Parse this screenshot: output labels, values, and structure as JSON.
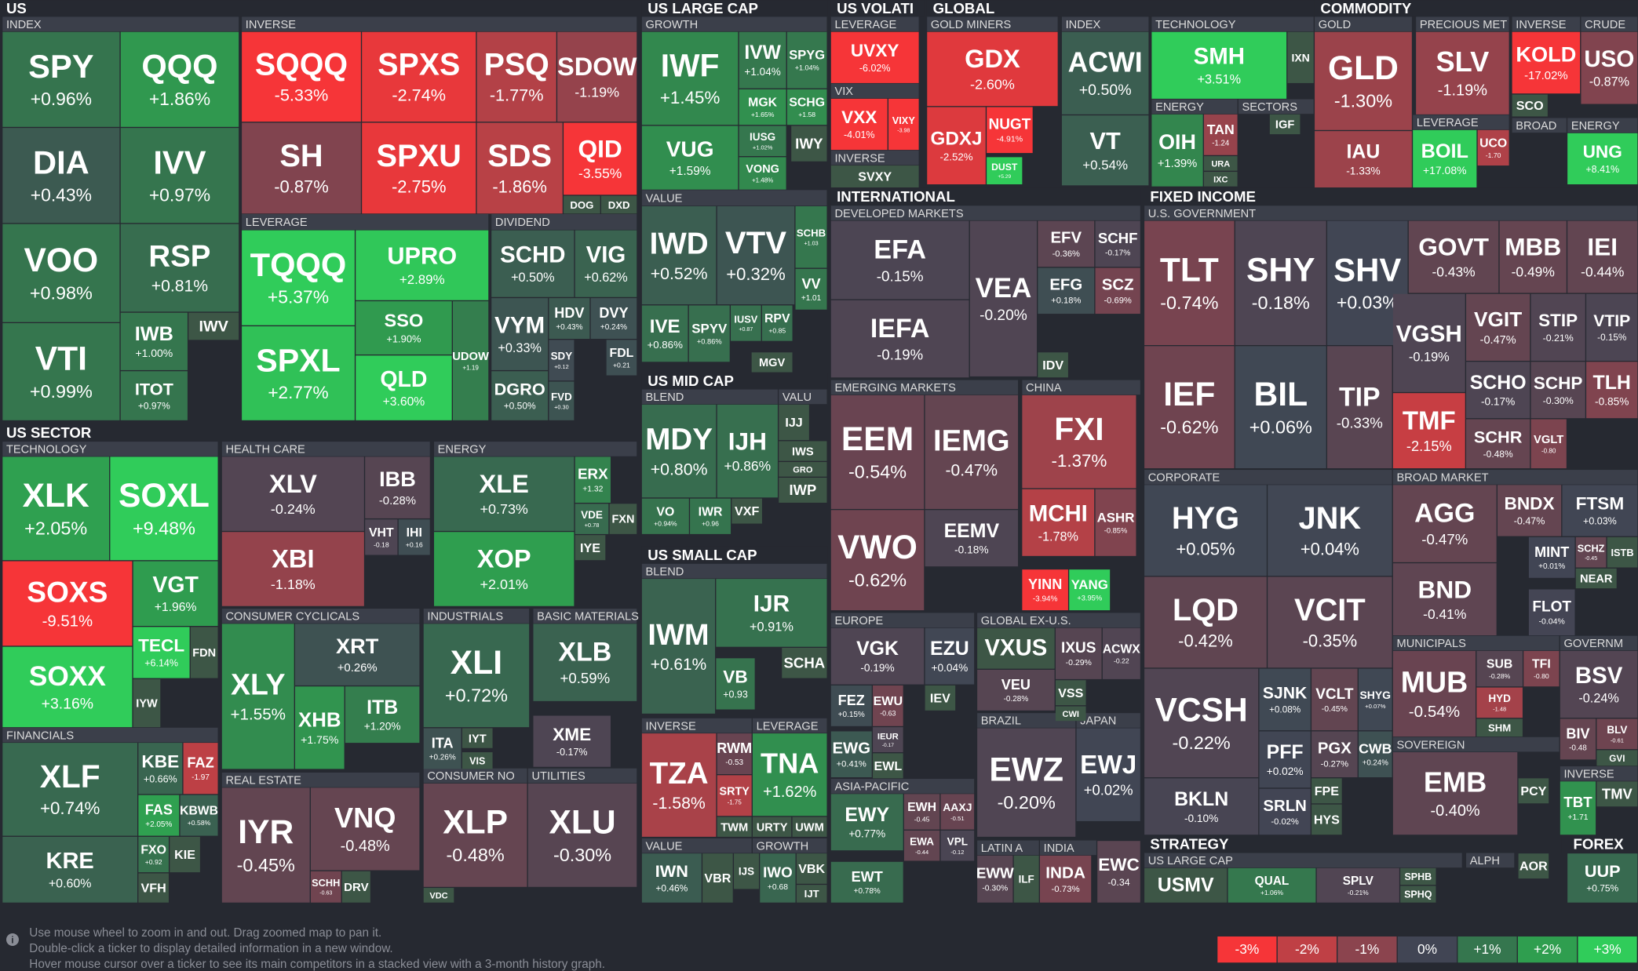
{
  "headers": [
    "US",
    "US SECTOR",
    "US LARGE CAP",
    "US MID CAP",
    "US SMALL CAP",
    "US VOLATI",
    "GLOBAL",
    "COMMODITY",
    "INTERNATIONAL",
    "FIXED INCOME",
    "STRATEGY",
    "FOREX"
  ],
  "groups": [
    "INDEX",
    "INVERSE",
    "LEVERAGE",
    "DIVIDEND",
    "TECHNOLOGY",
    "FINANCIALS",
    "HEALTH CARE",
    "ENERGY",
    "CONSUMER CYCLICALS",
    "INDUSTRIALS",
    "BASIC MATERIALS",
    "REAL ESTATE",
    "CONSUMER NO",
    "UTILITIES",
    "GROWTH",
    "VALUE",
    "BLEND",
    "VALU",
    "BLEND",
    "INVERSE",
    "LEVERAGE",
    "VALUE",
    "GROWTH",
    "LEVERAGE",
    "VIX",
    "INVERSE",
    "GOLD MINERS",
    "INDEX",
    "TECHNOLOGY",
    "ENERGY",
    "SECTORS",
    "GOLD",
    "PRECIOUS MET",
    "LEVERAGE",
    "INVERSE",
    "BROAD",
    "CRUDE",
    "ENERGY",
    "DEVELOPED MARKETS",
    "EMERGING MARKETS",
    "CHINA",
    "EUROPE",
    "GLOBAL EX-U.S.",
    "ASIA-PACIFIC",
    "BRAZIL",
    "JAPAN",
    "LATIN A",
    "INDIA",
    "U.S. GOVERNMENT",
    "CORPORATE",
    "BROAD MARKET",
    "MUNICIPALS",
    "GOVERNM",
    "SOVEREIGN",
    "INVERSE",
    "US LARGE CAP",
    "ALPH"
  ],
  "tiles": [
    {
      "t": "SPY",
      "v": 0.96,
      "l": "+0.96%"
    },
    {
      "t": "QQQ",
      "v": 1.86,
      "l": "+1.86%"
    },
    {
      "t": "DIA",
      "v": 0.43,
      "l": "+0.43%"
    },
    {
      "t": "IVV",
      "v": 0.97,
      "l": "+0.97%"
    },
    {
      "t": "VOO",
      "v": 0.98,
      "l": "+0.98%"
    },
    {
      "t": "RSP",
      "v": 0.81,
      "l": "+0.81%"
    },
    {
      "t": "VTI",
      "v": 0.99,
      "l": "+0.99%"
    },
    {
      "t": "IWB",
      "v": 1.0,
      "l": "+1.00%"
    },
    {
      "t": "ITOT",
      "v": 0.97,
      "l": "+0.97%"
    },
    {
      "t": "IWV"
    },
    {
      "t": "SQQQ",
      "v": -5.33,
      "l": "-5.33%"
    },
    {
      "t": "SPXS",
      "v": -2.74,
      "l": "-2.74%"
    },
    {
      "t": "PSQ",
      "v": -1.77,
      "l": "-1.77%"
    },
    {
      "t": "SDOW",
      "v": -1.19,
      "l": "-1.19%"
    },
    {
      "t": "SH",
      "v": -0.87,
      "l": "-0.87%"
    },
    {
      "t": "SPXU",
      "v": -2.75,
      "l": "-2.75%"
    },
    {
      "t": "SDS",
      "v": -1.86,
      "l": "-1.86%"
    },
    {
      "t": "QID",
      "v": -3.55,
      "l": "-3.55%"
    },
    {
      "t": "DOG"
    },
    {
      "t": "DXD"
    },
    {
      "t": "TQQQ",
      "v": 5.37,
      "l": "+5.37%"
    },
    {
      "t": "UPRO",
      "v": 2.89,
      "l": "+2.89%"
    },
    {
      "t": "SPXL",
      "v": 2.77,
      "l": "+2.77%"
    },
    {
      "t": "SSO",
      "v": 1.9,
      "l": "+1.90%"
    },
    {
      "t": "QLD",
      "v": 3.6,
      "l": "+3.60%"
    },
    {
      "t": "UDOW",
      "v": 1.19,
      "l": "+1.19"
    },
    {
      "t": "SCHD",
      "v": 0.5,
      "l": "+0.50%"
    },
    {
      "t": "VIG",
      "v": 0.62,
      "l": "+0.62%"
    },
    {
      "t": "VYM",
      "v": 0.33,
      "l": "+0.33%"
    },
    {
      "t": "HDV",
      "v": 0.43,
      "l": "+0.43%"
    },
    {
      "t": "DVY",
      "v": 0.24,
      "l": "+0.24%"
    },
    {
      "t": "SDY",
      "v": 0.12,
      "l": "+0.12"
    },
    {
      "t": "FDL",
      "v": 0.21,
      "l": "+0.21"
    },
    {
      "t": "DGRO",
      "v": 0.5,
      "l": "+0.50%"
    },
    {
      "t": "FVD",
      "v": 0.3,
      "l": "+0.30"
    },
    {
      "t": "XLK",
      "v": 2.05,
      "l": "+2.05%"
    },
    {
      "t": "SOXL",
      "v": 9.48,
      "l": "+9.48%"
    },
    {
      "t": "SOXS",
      "v": -9.51,
      "l": "-9.51%"
    },
    {
      "t": "VGT",
      "v": 1.96,
      "l": "+1.96%"
    },
    {
      "t": "SOXX",
      "v": 3.16,
      "l": "+3.16%"
    },
    {
      "t": "TECL",
      "v": 6.14,
      "l": "+6.14%"
    },
    {
      "t": "FDN"
    },
    {
      "t": "IYW"
    },
    {
      "t": "XLF",
      "v": 0.74,
      "l": "+0.74%"
    },
    {
      "t": "KBE",
      "v": 0.66,
      "l": "+0.66%"
    },
    {
      "t": "FAZ",
      "v": -1.97,
      "l": "-1.97"
    },
    {
      "t": "FAS",
      "v": 2.05,
      "l": "+2.05%"
    },
    {
      "t": "KBWB",
      "v": 0.58,
      "l": "+0.58%"
    },
    {
      "t": "KRE",
      "v": 0.6,
      "l": "+0.60%"
    },
    {
      "t": "FXO",
      "v": 0.92,
      "l": "+0.92"
    },
    {
      "t": "KIE"
    },
    {
      "t": "VFH"
    },
    {
      "t": "XLV",
      "v": -0.24,
      "l": "-0.24%"
    },
    {
      "t": "IBB",
      "v": -0.28,
      "l": "-0.28%"
    },
    {
      "t": "XBI",
      "v": -1.18,
      "l": "-1.18%"
    },
    {
      "t": "VHT",
      "v": -0.18,
      "l": "-0.18"
    },
    {
      "t": "IHI",
      "v": 0.16,
      "l": "+0.16"
    },
    {
      "t": "XLE",
      "v": 0.73,
      "l": "+0.73%"
    },
    {
      "t": "ERX",
      "v": 1.32,
      "l": "+1.32"
    },
    {
      "t": "VDE",
      "v": 0.78,
      "l": "+0.78"
    },
    {
      "t": "FXN"
    },
    {
      "t": "XOP",
      "v": 2.01,
      "l": "+2.01%"
    },
    {
      "t": "IYE"
    },
    {
      "t": "XRT",
      "v": 0.26,
      "l": "+0.26%"
    },
    {
      "t": "XLY",
      "v": 1.55,
      "l": "+1.55%"
    },
    {
      "t": "XHB",
      "v": 1.75,
      "l": "+1.75%"
    },
    {
      "t": "ITB",
      "v": 1.2,
      "l": "+1.20%"
    },
    {
      "t": "XLI",
      "v": 0.72,
      "l": "+0.72%"
    },
    {
      "t": "ITA",
      "v": 0.26,
      "l": "+0.26%"
    },
    {
      "t": "IYT"
    },
    {
      "t": "VIS"
    },
    {
      "t": "XLB",
      "v": 0.59,
      "l": "+0.59%"
    },
    {
      "t": "XME",
      "v": -0.17,
      "l": "-0.17%"
    },
    {
      "t": "IYR",
      "v": -0.45,
      "l": "-0.45%"
    },
    {
      "t": "VNQ",
      "v": -0.48,
      "l": "-0.48%"
    },
    {
      "t": "SCHH",
      "v": -0.63,
      "l": "-0.63"
    },
    {
      "t": "DRV"
    },
    {
      "t": "XLP",
      "v": -0.48,
      "l": "-0.48%"
    },
    {
      "t": "VDC"
    },
    {
      "t": "XLU",
      "v": -0.3,
      "l": "-0.30%"
    },
    {
      "t": "IWF",
      "v": 1.45,
      "l": "+1.45%"
    },
    {
      "t": "IVW",
      "v": 1.04,
      "l": "+1.04%"
    },
    {
      "t": "SPYG",
      "v": 1.04,
      "l": "+1.04%"
    },
    {
      "t": "MGK",
      "v": 1.65,
      "l": "+1.65%"
    },
    {
      "t": "SCHG",
      "v": 1.58,
      "l": "+1.58"
    },
    {
      "t": "VUG",
      "v": 1.59,
      "l": "+1.59%"
    },
    {
      "t": "IUSG",
      "v": 1.02,
      "l": "+1.02%"
    },
    {
      "t": "IWY"
    },
    {
      "t": "VONG",
      "v": 1.48,
      "l": "+1.48%"
    },
    {
      "t": "IWD",
      "v": 0.52,
      "l": "+0.52%"
    },
    {
      "t": "VTV",
      "v": 0.32,
      "l": "+0.32%"
    },
    {
      "t": "SCHB",
      "v": 1.03,
      "l": "+1.03"
    },
    {
      "t": "VV",
      "v": 1.01,
      "l": "+1.01"
    },
    {
      "t": "IVE",
      "v": 0.86,
      "l": "+0.86%"
    },
    {
      "t": "SPYV",
      "v": 0.86,
      "l": "+0.86%"
    },
    {
      "t": "IUSV",
      "v": 0.87,
      "l": "+0.87"
    },
    {
      "t": "RPV",
      "v": 0.85,
      "l": "+0.85"
    },
    {
      "t": "MGV"
    },
    {
      "t": "MDY",
      "v": 0.8,
      "l": "+0.80%"
    },
    {
      "t": "IJH",
      "v": 0.86,
      "l": "+0.86%"
    },
    {
      "t": "VO",
      "v": 0.94,
      "l": "+0.94%"
    },
    {
      "t": "IWR",
      "v": 0.96,
      "l": "+0.96"
    },
    {
      "t": "VXF"
    },
    {
      "t": "IJJ"
    },
    {
      "t": "IWS"
    },
    {
      "t": "GRO"
    },
    {
      "t": "IWP"
    },
    {
      "t": "IJR",
      "v": 0.91,
      "l": "+0.91%"
    },
    {
      "t": "IWM",
      "v": 0.61,
      "l": "+0.61%"
    },
    {
      "t": "SCHA"
    },
    {
      "t": "VB",
      "v": 0.93,
      "l": "+0.93"
    },
    {
      "t": "TZA",
      "v": -1.58,
      "l": "-1.58%"
    },
    {
      "t": "RWM",
      "v": -0.53,
      "l": "-0.53"
    },
    {
      "t": "SRTY",
      "v": -1.75,
      "l": "-1.75"
    },
    {
      "t": "TWM"
    },
    {
      "t": "TNA",
      "v": 1.62,
      "l": "+1.62%"
    },
    {
      "t": "URTY"
    },
    {
      "t": "UWM"
    },
    {
      "t": "IWN",
      "v": 0.46,
      "l": "+0.46%"
    },
    {
      "t": "VBR"
    },
    {
      "t": "IJS"
    },
    {
      "t": "IWO",
      "v": 0.68,
      "l": "+0.68"
    },
    {
      "t": "VBK"
    },
    {
      "t": "IJT"
    },
    {
      "t": "UVXY",
      "v": -6.02,
      "l": "-6.02%"
    },
    {
      "t": "VXX",
      "v": -4.01,
      "l": "-4.01%"
    },
    {
      "t": "VIXY",
      "v": -3.98,
      "l": "-3.98"
    },
    {
      "t": "SVXY"
    },
    {
      "t": "GDX",
      "v": -2.6,
      "l": "-2.60%"
    },
    {
      "t": "GDXJ",
      "v": -2.52,
      "l": "-2.52%"
    },
    {
      "t": "NUGT",
      "v": -4.91,
      "l": "-4.91%"
    },
    {
      "t": "DUST",
      "v": 5.29,
      "l": "+5.29"
    },
    {
      "t": "ACWI",
      "v": 0.5,
      "l": "+0.50%"
    },
    {
      "t": "VT",
      "v": 0.54,
      "l": "+0.54%"
    },
    {
      "t": "SMH",
      "v": 3.51,
      "l": "+3.51%"
    },
    {
      "t": "IXN"
    },
    {
      "t": "OIH",
      "v": 1.39,
      "l": "+1.39%"
    },
    {
      "t": "TAN",
      "v": -1.24,
      "l": "-1.24"
    },
    {
      "t": "URA"
    },
    {
      "t": "IXC"
    },
    {
      "t": "IGF"
    },
    {
      "t": "GLD",
      "v": -1.3,
      "l": "-1.30%"
    },
    {
      "t": "IAU",
      "v": -1.33,
      "l": "-1.33%"
    },
    {
      "t": "SLV",
      "v": -1.19,
      "l": "-1.19%"
    },
    {
      "t": "BOIL",
      "v": 17.08,
      "l": "+17.08%"
    },
    {
      "t": "UCO",
      "v": -1.7,
      "l": "-1.70"
    },
    {
      "t": "KOLD",
      "v": -17.02,
      "l": "-17.02%"
    },
    {
      "t": "SCO"
    },
    {
      "t": "USO",
      "v": -0.87,
      "l": "-0.87%"
    },
    {
      "t": "UNG",
      "v": 8.41,
      "l": "+8.41%"
    },
    {
      "t": "EFA",
      "v": -0.15,
      "l": "-0.15%"
    },
    {
      "t": "IEFA",
      "v": -0.19,
      "l": "-0.19%"
    },
    {
      "t": "VEA",
      "v": -0.2,
      "l": "-0.20%"
    },
    {
      "t": "EFV",
      "v": -0.36,
      "l": "-0.36%"
    },
    {
      "t": "SCHF",
      "v": -0.17,
      "l": "-0.17%"
    },
    {
      "t": "EFG",
      "v": 0.18,
      "l": "+0.18%"
    },
    {
      "t": "SCZ",
      "v": -0.69,
      "l": "-0.69%"
    },
    {
      "t": "IDV"
    },
    {
      "t": "EEM",
      "v": -0.54,
      "l": "-0.54%"
    },
    {
      "t": "IEMG",
      "v": -0.47,
      "l": "-0.47%"
    },
    {
      "t": "EEMV",
      "v": -0.18,
      "l": "-0.18%"
    },
    {
      "t": "VWO",
      "v": -0.62,
      "l": "-0.62%"
    },
    {
      "t": "FXI",
      "v": -1.37,
      "l": "-1.37%"
    },
    {
      "t": "MCHI",
      "v": -1.78,
      "l": "-1.78%"
    },
    {
      "t": "ASHR",
      "v": -0.85,
      "l": "-0.85%"
    },
    {
      "t": "YINN",
      "v": -3.94,
      "l": "-3.94%"
    },
    {
      "t": "YANG",
      "v": 3.95,
      "l": "+3.95%"
    },
    {
      "t": "VGK",
      "v": -0.19,
      "l": "-0.19%"
    },
    {
      "t": "EZU",
      "v": 0.04,
      "l": "+0.04%"
    },
    {
      "t": "FEZ",
      "v": 0.15,
      "l": "+0.15%"
    },
    {
      "t": "EWU",
      "v": -0.63,
      "l": "-0.63"
    },
    {
      "t": "IEV"
    },
    {
      "t": "EWG",
      "v": 0.41,
      "l": "+0.41%"
    },
    {
      "t": "IEUR",
      "v": -0.17,
      "l": "-0.17"
    },
    {
      "t": "EWL"
    },
    {
      "t": "VXUS"
    },
    {
      "t": "IXUS",
      "v": -0.29,
      "l": "-0.29%"
    },
    {
      "t": "ACWX",
      "v": -0.22,
      "l": "-0.22"
    },
    {
      "t": "VEU",
      "v": -0.28,
      "l": "-0.28%"
    },
    {
      "t": "VSS"
    },
    {
      "t": "CWI"
    },
    {
      "t": "EWY",
      "v": 0.77,
      "l": "+0.77%"
    },
    {
      "t": "EWH",
      "v": -0.45,
      "l": "-0.45"
    },
    {
      "t": "AAXJ",
      "v": -0.51,
      "l": "-0.51"
    },
    {
      "t": "EWA",
      "v": -0.44,
      "l": "-0.44"
    },
    {
      "t": "VPL",
      "v": -0.12,
      "l": "-0.12"
    },
    {
      "t": "EWT",
      "v": 0.78,
      "l": "+0.78%"
    },
    {
      "t": "EWZ",
      "v": -0.2,
      "l": "-0.20%"
    },
    {
      "t": "EWJ",
      "v": 0.02,
      "l": "+0.02%"
    },
    {
      "t": "EWW",
      "v": -0.3,
      "l": "-0.30%"
    },
    {
      "t": "ILF"
    },
    {
      "t": "INDA",
      "v": -0.73,
      "l": "-0.73%"
    },
    {
      "t": "EWC",
      "v": -0.34,
      "l": "-0.34"
    },
    {
      "t": "TLT",
      "v": -0.74,
      "l": "-0.74%"
    },
    {
      "t": "SHY",
      "v": -0.18,
      "l": "-0.18%"
    },
    {
      "t": "SHV",
      "v": 0.03,
      "l": "+0.03%"
    },
    {
      "t": "GOVT",
      "v": -0.43,
      "l": "-0.43%"
    },
    {
      "t": "MBB",
      "v": -0.49,
      "l": "-0.49%"
    },
    {
      "t": "IEI",
      "v": -0.44,
      "l": "-0.44%"
    },
    {
      "t": "IEF",
      "v": -0.62,
      "l": "-0.62%"
    },
    {
      "t": "BIL",
      "v": 0.06,
      "l": "+0.06%"
    },
    {
      "t": "TIP",
      "v": -0.33,
      "l": "-0.33%"
    },
    {
      "t": "VGSH",
      "v": -0.19,
      "l": "-0.19%"
    },
    {
      "t": "VGIT",
      "v": -0.47,
      "l": "-0.47%"
    },
    {
      "t": "STIP",
      "v": -0.21,
      "l": "-0.21%"
    },
    {
      "t": "VTIP",
      "v": -0.15,
      "l": "-0.15%"
    },
    {
      "t": "TMF",
      "v": -2.15,
      "l": "-2.15%"
    },
    {
      "t": "SCHO",
      "v": -0.17,
      "l": "-0.17%"
    },
    {
      "t": "SCHP",
      "v": -0.3,
      "l": "-0.30%"
    },
    {
      "t": "TLH",
      "v": -0.85,
      "l": "-0.85%"
    },
    {
      "t": "SCHR",
      "v": -0.48,
      "l": "-0.48%"
    },
    {
      "t": "VGLT",
      "v": -0.8,
      "l": "-0.80"
    },
    {
      "t": "HYG",
      "v": 0.05,
      "l": "+0.05%"
    },
    {
      "t": "JNK",
      "v": 0.04,
      "l": "+0.04%"
    },
    {
      "t": "LQD",
      "v": -0.42,
      "l": "-0.42%"
    },
    {
      "t": "VCIT",
      "v": -0.35,
      "l": "-0.35%"
    },
    {
      "t": "VCSH",
      "v": -0.22,
      "l": "-0.22%"
    },
    {
      "t": "SJNK",
      "v": 0.08,
      "l": "+0.08%"
    },
    {
      "t": "VCLT",
      "v": -0.45,
      "l": "-0.45%"
    },
    {
      "t": "SHYG",
      "v": 0.07,
      "l": "+0.07%"
    },
    {
      "t": "PFF",
      "v": 0.02,
      "l": "+0.02%"
    },
    {
      "t": "PGX",
      "v": -0.27,
      "l": "-0.27%"
    },
    {
      "t": "CWB",
      "v": 0.24,
      "l": "+0.24%"
    },
    {
      "t": "BKLN",
      "v": -0.1,
      "l": "-0.10%"
    },
    {
      "t": "SRLN",
      "v": -0.02,
      "l": "-0.02%"
    },
    {
      "t": "FPE"
    },
    {
      "t": "HYS"
    },
    {
      "t": "AGG",
      "v": -0.47,
      "l": "-0.47%"
    },
    {
      "t": "BNDX",
      "v": -0.47,
      "l": "-0.47%"
    },
    {
      "t": "FTSM",
      "v": 0.03,
      "l": "+0.03%"
    },
    {
      "t": "BND",
      "v": -0.41,
      "l": "-0.41%"
    },
    {
      "t": "MINT",
      "v": 0.01,
      "l": "+0.01%"
    },
    {
      "t": "SCHZ",
      "v": -0.45,
      "l": "-0.45"
    },
    {
      "t": "ISTB"
    },
    {
      "t": "NEAR"
    },
    {
      "t": "FLOT",
      "v": -0.04,
      "l": "-0.04%"
    },
    {
      "t": "MUB",
      "v": -0.54,
      "l": "-0.54%"
    },
    {
      "t": "SUB",
      "v": -0.28,
      "l": "-0.28%"
    },
    {
      "t": "TFI",
      "v": -0.8,
      "l": "-0.80"
    },
    {
      "t": "HYD",
      "v": -1.48,
      "l": "-1.48"
    },
    {
      "t": "SHM"
    },
    {
      "t": "BSV",
      "v": -0.24,
      "l": "-0.24%"
    },
    {
      "t": "BIV",
      "v": -0.48,
      "l": "-0.48"
    },
    {
      "t": "BLV",
      "v": -0.61,
      "l": "-0.61"
    },
    {
      "t": "GVI"
    },
    {
      "t": "EMB",
      "v": -0.4,
      "l": "-0.40%"
    },
    {
      "t": "PCY"
    },
    {
      "t": "TBT",
      "v": 1.71,
      "l": "+1.71"
    },
    {
      "t": "TMV"
    },
    {
      "t": "USMV"
    },
    {
      "t": "QUAL",
      "v": 1.06,
      "l": "+1.06%"
    },
    {
      "t": "SPLV",
      "v": -0.21,
      "l": "-0.21%"
    },
    {
      "t": "SPHB"
    },
    {
      "t": "SPHQ"
    },
    {
      "t": "AOR"
    },
    {
      "t": "UUP",
      "v": 0.75,
      "l": "+0.75%"
    }
  ],
  "palette": [
    "#f63538",
    "#bf4045",
    "#8b444e",
    "#414554",
    "#35764e",
    "#2f9e4f",
    "#30cc5a"
  ],
  "scale": [
    {
      "value": -3,
      "label": "-3%"
    },
    {
      "value": -2,
      "label": "-2%"
    },
    {
      "value": -1,
      "label": "-1%"
    },
    {
      "value": 0,
      "label": "0%"
    },
    {
      "value": 1,
      "label": "+1%"
    },
    {
      "value": 2,
      "label": "+2%"
    },
    {
      "value": 3,
      "label": "+3%"
    }
  ],
  "footer": [
    "Use mouse wheel to zoom in and out. Drag zoomed map to pan it.",
    "Double-click a ticker to display detailed information in a new window.",
    "Hover mouse cursor over a ticker to see its main competitors in a stacked view with a 3-month history graph."
  ]
}
